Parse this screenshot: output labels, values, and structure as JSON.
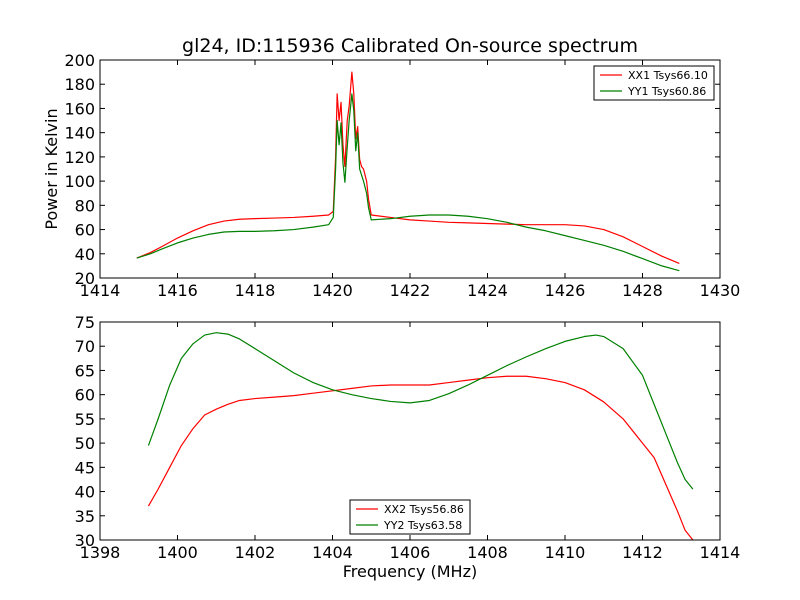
{
  "chart_data": [
    {
      "type": "line",
      "title": "gl24, ID:115936 Calibrated On-source spectrum",
      "xlabel": "",
      "ylabel": "Power in Kelvin",
      "xlim": [
        1414,
        1430
      ],
      "ylim": [
        20,
        200
      ],
      "xticks": [
        1414,
        1416,
        1418,
        1420,
        1422,
        1424,
        1426,
        1428,
        1430
      ],
      "yticks": [
        20,
        40,
        60,
        80,
        100,
        120,
        140,
        160,
        180,
        200
      ],
      "grid": false,
      "legend": "top-right",
      "series": [
        {
          "name": "XX1 Tsys66.10",
          "color": "#ff0000",
          "points": [
            [
              1414.95,
              36.5
            ],
            [
              1415.3,
              41
            ],
            [
              1415.6,
              46
            ],
            [
              1416.0,
              53
            ],
            [
              1416.4,
              59
            ],
            [
              1416.8,
              64
            ],
            [
              1417.2,
              67
            ],
            [
              1417.6,
              68.5
            ],
            [
              1418.0,
              69
            ],
            [
              1418.5,
              69.5
            ],
            [
              1419.0,
              70
            ],
            [
              1419.5,
              71
            ],
            [
              1419.9,
              72
            ],
            [
              1420.02,
              75
            ],
            [
              1420.08,
              120
            ],
            [
              1420.12,
              172
            ],
            [
              1420.17,
              150
            ],
            [
              1420.22,
              165
            ],
            [
              1420.27,
              130
            ],
            [
              1420.32,
              112
            ],
            [
              1420.38,
              150
            ],
            [
              1420.43,
              162
            ],
            [
              1420.5,
              190
            ],
            [
              1420.55,
              172
            ],
            [
              1420.6,
              135
            ],
            [
              1420.65,
              145
            ],
            [
              1420.7,
              118
            ],
            [
              1420.75,
              112
            ],
            [
              1420.8,
              110
            ],
            [
              1420.84,
              105
            ],
            [
              1420.88,
              100
            ],
            [
              1420.93,
              85
            ],
            [
              1421.0,
              72
            ],
            [
              1421.5,
              70
            ],
            [
              1422.0,
              68
            ],
            [
              1422.5,
              67
            ],
            [
              1423.0,
              66
            ],
            [
              1423.5,
              65.5
            ],
            [
              1424.0,
              65
            ],
            [
              1424.5,
              64.5
            ],
            [
              1425.0,
              64
            ],
            [
              1425.5,
              64
            ],
            [
              1426.0,
              64
            ],
            [
              1426.5,
              63
            ],
            [
              1427.0,
              60
            ],
            [
              1427.5,
              54
            ],
            [
              1428.0,
              46
            ],
            [
              1428.5,
              38
            ],
            [
              1428.95,
              32
            ]
          ]
        },
        {
          "name": "YY1 Tsys60.86",
          "color": "#008000",
          "points": [
            [
              1414.95,
              36.5
            ],
            [
              1415.3,
              40
            ],
            [
              1415.6,
              44
            ],
            [
              1416.0,
              49
            ],
            [
              1416.4,
              53
            ],
            [
              1416.8,
              56
            ],
            [
              1417.2,
              58
            ],
            [
              1417.6,
              58.5
            ],
            [
              1418.0,
              58.5
            ],
            [
              1418.5,
              59
            ],
            [
              1419.0,
              60
            ],
            [
              1419.5,
              62
            ],
            [
              1419.9,
              64
            ],
            [
              1420.02,
              70
            ],
            [
              1420.08,
              110
            ],
            [
              1420.12,
              150
            ],
            [
              1420.17,
              130
            ],
            [
              1420.22,
              148
            ],
            [
              1420.27,
              115
            ],
            [
              1420.32,
              99
            ],
            [
              1420.38,
              128
            ],
            [
              1420.43,
              150
            ],
            [
              1420.5,
              172
            ],
            [
              1420.55,
              158
            ],
            [
              1420.6,
              125
            ],
            [
              1420.65,
              140
            ],
            [
              1420.7,
              110
            ],
            [
              1420.75,
              105
            ],
            [
              1420.8,
              100
            ],
            [
              1420.84,
              95
            ],
            [
              1420.88,
              90
            ],
            [
              1420.93,
              78
            ],
            [
              1421.0,
              68
            ],
            [
              1421.5,
              69
            ],
            [
              1422.0,
              71
            ],
            [
              1422.5,
              72
            ],
            [
              1423.0,
              72
            ],
            [
              1423.5,
              71
            ],
            [
              1424.0,
              69
            ],
            [
              1424.5,
              66
            ],
            [
              1425.0,
              62
            ],
            [
              1425.5,
              59
            ],
            [
              1426.0,
              55
            ],
            [
              1426.5,
              51
            ],
            [
              1427.0,
              47
            ],
            [
              1427.5,
              42
            ],
            [
              1428.0,
              36
            ],
            [
              1428.5,
              30
            ],
            [
              1428.95,
              26
            ]
          ]
        }
      ]
    },
    {
      "type": "line",
      "title": "",
      "xlabel": "Frequency (MHz)",
      "ylabel": "",
      "xlim": [
        1398,
        1414
      ],
      "ylim": [
        30,
        75
      ],
      "xticks": [
        1398,
        1400,
        1402,
        1404,
        1406,
        1408,
        1410,
        1412,
        1414
      ],
      "yticks": [
        30,
        35,
        40,
        45,
        50,
        55,
        60,
        65,
        70,
        75
      ],
      "grid": false,
      "legend": "bottom-center",
      "series": [
        {
          "name": "XX2 Tsys56.86",
          "color": "#ff0000",
          "points": [
            [
              1399.25,
              37
            ],
            [
              1399.5,
              40.5
            ],
            [
              1399.8,
              45
            ],
            [
              1400.1,
              49.5
            ],
            [
              1400.4,
              53
            ],
            [
              1400.7,
              55.8
            ],
            [
              1401.0,
              57
            ],
            [
              1401.3,
              58
            ],
            [
              1401.6,
              58.8
            ],
            [
              1402.0,
              59.2
            ],
            [
              1402.5,
              59.5
            ],
            [
              1403.0,
              59.8
            ],
            [
              1403.5,
              60.3
            ],
            [
              1404.0,
              60.8
            ],
            [
              1404.5,
              61.3
            ],
            [
              1405.0,
              61.8
            ],
            [
              1405.5,
              62
            ],
            [
              1406.0,
              62
            ],
            [
              1406.5,
              62
            ],
            [
              1407.0,
              62.5
            ],
            [
              1407.5,
              63
            ],
            [
              1408.0,
              63.5
            ],
            [
              1408.5,
              63.8
            ],
            [
              1409.0,
              63.8
            ],
            [
              1409.5,
              63.3
            ],
            [
              1410.0,
              62.5
            ],
            [
              1410.5,
              61
            ],
            [
              1411.0,
              58.5
            ],
            [
              1411.5,
              55
            ],
            [
              1412.0,
              50
            ],
            [
              1412.3,
              47
            ],
            [
              1412.6,
              41.5
            ],
            [
              1412.9,
              36
            ],
            [
              1413.1,
              32
            ],
            [
              1413.3,
              30
            ]
          ]
        },
        {
          "name": "YY2 Tsys63.58",
          "color": "#008000",
          "points": [
            [
              1399.25,
              49.5
            ],
            [
              1399.5,
              55
            ],
            [
              1399.8,
              62
            ],
            [
              1400.1,
              67.5
            ],
            [
              1400.4,
              70.5
            ],
            [
              1400.7,
              72.3
            ],
            [
              1401.0,
              72.8
            ],
            [
              1401.3,
              72.5
            ],
            [
              1401.6,
              71.5
            ],
            [
              1402.0,
              69.5
            ],
            [
              1402.5,
              67
            ],
            [
              1403.0,
              64.5
            ],
            [
              1403.5,
              62.5
            ],
            [
              1404.0,
              61
            ],
            [
              1404.5,
              60
            ],
            [
              1405.0,
              59.2
            ],
            [
              1405.5,
              58.6
            ],
            [
              1406.0,
              58.3
            ],
            [
              1406.5,
              58.8
            ],
            [
              1407.0,
              60.2
            ],
            [
              1407.5,
              62
            ],
            [
              1408.0,
              64
            ],
            [
              1408.5,
              66
            ],
            [
              1409.0,
              67.8
            ],
            [
              1409.5,
              69.5
            ],
            [
              1410.0,
              71
            ],
            [
              1410.5,
              72
            ],
            [
              1410.8,
              72.3
            ],
            [
              1411.0,
              72
            ],
            [
              1411.5,
              69.5
            ],
            [
              1412.0,
              64
            ],
            [
              1412.3,
              58
            ],
            [
              1412.6,
              52
            ],
            [
              1412.9,
              46
            ],
            [
              1413.1,
              42.5
            ],
            [
              1413.3,
              40.5
            ]
          ]
        }
      ]
    }
  ]
}
